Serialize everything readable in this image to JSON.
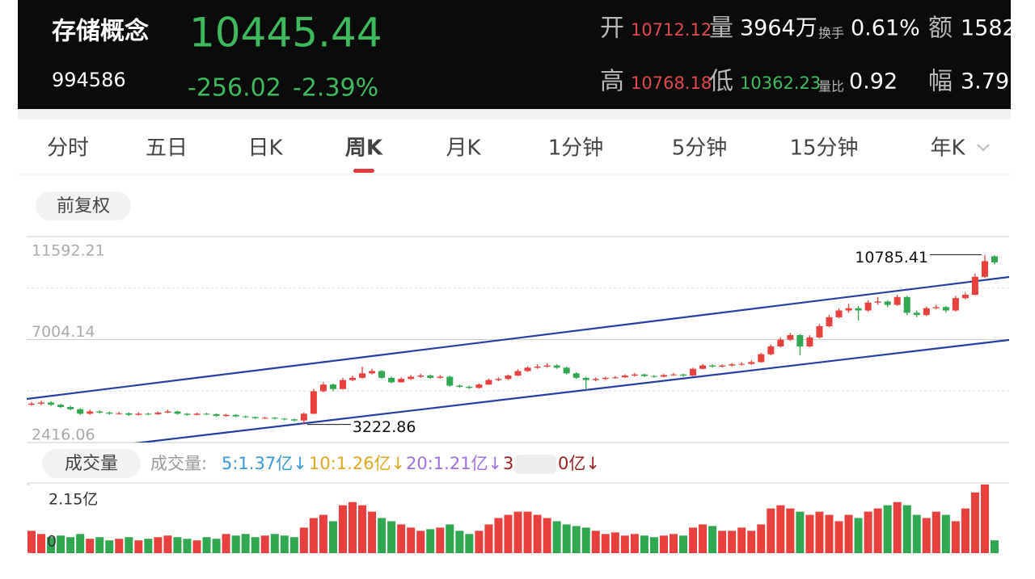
{
  "header": {
    "title": "存储概念",
    "price": "10445.44",
    "code": "994586",
    "change": "-256.02",
    "change_pct": "-2.39%",
    "open_label": "开",
    "open": "10712.12",
    "volume_label": "量",
    "volume": "3964万",
    "turnover_label": "换手",
    "turnover": "0.61%",
    "amount_label": "额",
    "amount": "1582",
    "high_label": "高",
    "high": "10768.18",
    "low_label": "低",
    "low": "10362.23",
    "ratio_label": "量比",
    "ratio": "0.92",
    "amp_label": "幅",
    "amp": "3.79"
  },
  "tabs": [
    "分时",
    "五日",
    "日K",
    "周K",
    "月K",
    "1分钟",
    "5分钟",
    "15分钟",
    "年K"
  ],
  "active_tab": 3,
  "adjust_button": "前复权",
  "volume_button": "成交量",
  "volume_legend": {
    "label": "成交量:",
    "items": [
      {
        "text": "5:1.37亿↓",
        "color": "#3a9ad9"
      },
      {
        "text": "10:1.26亿↓",
        "color": "#e0a820"
      },
      {
        "text": "20:1.21亿↓",
        "color": "#a070e0"
      },
      {
        "text": "3",
        "color": "#9a2020"
      },
      {
        "text": "0亿↓",
        "color": "#9a2020"
      }
    ]
  },
  "chart_data": [
    {
      "type": "candlestick",
      "up_color": "#e8403c",
      "down_color": "#2fa84f",
      "grid": true,
      "ylim": [
        2416.06,
        11592.21
      ],
      "yticks": [
        11592.21,
        7004.14,
        2416.06
      ],
      "trendline_color": "#2340a0",
      "trendlines": [
        {
          "start": 4360,
          "end": 9793
        },
        {
          "start": 1812,
          "end": 6987
        }
      ],
      "candles": [
        [
          4100,
          4230,
          4050,
          4150
        ],
        [
          4150,
          4280,
          4080,
          4200
        ],
        [
          4200,
          4260,
          4050,
          4100
        ],
        [
          4100,
          4150,
          3950,
          4000
        ],
        [
          4000,
          4060,
          3850,
          3900
        ],
        [
          3900,
          3950,
          3650,
          3700
        ],
        [
          3700,
          3880,
          3660,
          3800
        ],
        [
          3800,
          3850,
          3700,
          3750
        ],
        [
          3750,
          3800,
          3650,
          3700
        ],
        [
          3700,
          3780,
          3660,
          3720
        ],
        [
          3720,
          3760,
          3600,
          3650
        ],
        [
          3650,
          3760,
          3620,
          3700
        ],
        [
          3700,
          3740,
          3640,
          3680
        ],
        [
          3680,
          3800,
          3650,
          3750
        ],
        [
          3750,
          3880,
          3720,
          3800
        ],
        [
          3800,
          3830,
          3660,
          3700
        ],
        [
          3700,
          3730,
          3610,
          3650
        ],
        [
          3650,
          3750,
          3620,
          3700
        ],
        [
          3700,
          3740,
          3640,
          3680
        ],
        [
          3680,
          3710,
          3560,
          3600
        ],
        [
          3600,
          3700,
          3570,
          3650
        ],
        [
          3650,
          3680,
          3540,
          3580
        ],
        [
          3580,
          3620,
          3510,
          3550
        ],
        [
          3550,
          3580,
          3460,
          3500
        ],
        [
          3500,
          3570,
          3470,
          3520
        ],
        [
          3520,
          3550,
          3440,
          3480
        ],
        [
          3480,
          3510,
          3400,
          3450
        ],
        [
          3450,
          3480,
          3350,
          3400
        ],
        [
          3400,
          3750,
          3222.86,
          3700
        ],
        [
          3700,
          4800,
          3680,
          4700
        ],
        [
          4700,
          5100,
          4650,
          5000
        ],
        [
          5000,
          5050,
          4700,
          4800
        ],
        [
          4800,
          5300,
          4780,
          5200
        ],
        [
          5200,
          5400,
          5150,
          5300
        ],
        [
          5300,
          5800,
          5250,
          5500
        ],
        [
          5500,
          5700,
          5450,
          5600
        ],
        [
          5600,
          5650,
          5250,
          5300
        ],
        [
          5300,
          5350,
          5050,
          5100
        ],
        [
          5100,
          5320,
          5080,
          5250
        ],
        [
          5250,
          5420,
          5200,
          5350
        ],
        [
          5350,
          5480,
          5300,
          5400
        ],
        [
          5400,
          5450,
          5250,
          5300
        ],
        [
          5300,
          5420,
          5260,
          5350
        ],
        [
          5350,
          5400,
          4900,
          4950
        ],
        [
          4950,
          5000,
          4850,
          4900
        ],
        [
          4900,
          4950,
          4800,
          4850
        ],
        [
          4850,
          5050,
          4820,
          5000
        ],
        [
          5000,
          5260,
          4980,
          5200
        ],
        [
          5200,
          5320,
          5150,
          5250
        ],
        [
          5250,
          5450,
          5200,
          5400
        ],
        [
          5400,
          5680,
          5380,
          5600
        ],
        [
          5600,
          5820,
          5560,
          5750
        ],
        [
          5750,
          5900,
          5700,
          5800
        ],
        [
          5800,
          5950,
          5750,
          5850
        ],
        [
          5850,
          5900,
          5700,
          5750
        ],
        [
          5750,
          5800,
          5450,
          5500
        ],
        [
          5500,
          5550,
          5250,
          5300
        ],
        [
          5300,
          5350,
          4750,
          5200
        ],
        [
          5200,
          5320,
          5150,
          5250
        ],
        [
          5250,
          5350,
          5200,
          5300
        ],
        [
          5300,
          5380,
          5260,
          5320
        ],
        [
          5320,
          5460,
          5300,
          5400
        ],
        [
          5400,
          5520,
          5350,
          5450
        ],
        [
          5450,
          5480,
          5330,
          5380
        ],
        [
          5380,
          5420,
          5300,
          5350
        ],
        [
          5350,
          5480,
          5320,
          5420
        ],
        [
          5420,
          5520,
          5380,
          5450
        ],
        [
          5450,
          5480,
          5350,
          5400
        ],
        [
          5400,
          5750,
          5380,
          5700
        ],
        [
          5700,
          5920,
          5680,
          5850
        ],
        [
          5850,
          5900,
          5750,
          5800
        ],
        [
          5800,
          5900,
          5760,
          5850
        ],
        [
          5850,
          5960,
          5800,
          5900
        ],
        [
          5900,
          6000,
          5850,
          5920
        ],
        [
          5920,
          6080,
          5880,
          6000
        ],
        [
          6000,
          6420,
          5980,
          6350
        ],
        [
          6350,
          6780,
          6300,
          6700
        ],
        [
          6700,
          7100,
          6650,
          7000
        ],
        [
          7000,
          7300,
          6950,
          7200
        ],
        [
          7200,
          7250,
          6300,
          6700
        ],
        [
          6700,
          7200,
          6650,
          7100
        ],
        [
          7100,
          7700,
          7050,
          7600
        ],
        [
          7600,
          8100,
          7550,
          8000
        ],
        [
          8000,
          8400,
          7950,
          8300
        ],
        [
          8300,
          8600,
          8200,
          8400
        ],
        [
          8400,
          8500,
          7850,
          8300
        ],
        [
          8300,
          8750,
          8250,
          8650
        ],
        [
          8650,
          8900,
          8550,
          8700
        ],
        [
          8700,
          8760,
          8450,
          8550
        ],
        [
          8550,
          9000,
          8500,
          8900
        ],
        [
          8900,
          8950,
          8100,
          8200
        ],
        [
          8200,
          8300,
          8000,
          8100
        ],
        [
          8100,
          8480,
          8050,
          8400
        ],
        [
          8400,
          8550,
          8350,
          8450
        ],
        [
          8450,
          8500,
          8200,
          8300
        ],
        [
          8300,
          8950,
          8250,
          8850
        ],
        [
          8850,
          9100,
          8800,
          9000
        ],
        [
          9000,
          9950,
          8980,
          9800
        ],
        [
          9800,
          10785.41,
          9750,
          10500
        ],
        [
          10712.12,
          10768.18,
          10362.23,
          10445.44
        ]
      ]
    },
    {
      "type": "bar",
      "ylim": [
        0,
        2.15
      ],
      "yticks": [
        {
          "value": 2.15,
          "label": "2.15亿"
        },
        0
      ],
      "values": [
        0.7,
        0.6,
        0.5,
        0.55,
        0.5,
        0.6,
        0.45,
        0.5,
        0.4,
        0.45,
        0.5,
        0.4,
        0.45,
        0.5,
        0.55,
        0.5,
        0.45,
        0.4,
        0.5,
        0.45,
        0.6,
        0.55,
        0.6,
        0.5,
        0.55,
        0.6,
        0.55,
        0.5,
        0.8,
        1.1,
        1.2,
        1.0,
        1.5,
        1.6,
        1.5,
        1.3,
        1.1,
        1.0,
        0.9,
        0.8,
        0.7,
        0.75,
        0.8,
        0.9,
        0.7,
        0.6,
        0.7,
        0.9,
        1.1,
        1.2,
        1.3,
        1.3,
        1.2,
        1.1,
        1.0,
        0.9,
        0.85,
        0.8,
        0.7,
        0.6,
        0.65,
        0.55,
        0.6,
        0.55,
        0.5,
        0.55,
        0.6,
        0.55,
        0.8,
        0.9,
        0.85,
        0.7,
        0.7,
        0.8,
        0.7,
        0.9,
        1.4,
        1.5,
        1.4,
        1.3,
        1.2,
        1.3,
        1.2,
        1.0,
        1.2,
        1.1,
        1.3,
        1.4,
        1.5,
        1.6,
        1.5,
        1.2,
        1.1,
        1.3,
        1.2,
        1.0,
        1.4,
        1.9,
        2.15,
        0.4
      ]
    }
  ]
}
